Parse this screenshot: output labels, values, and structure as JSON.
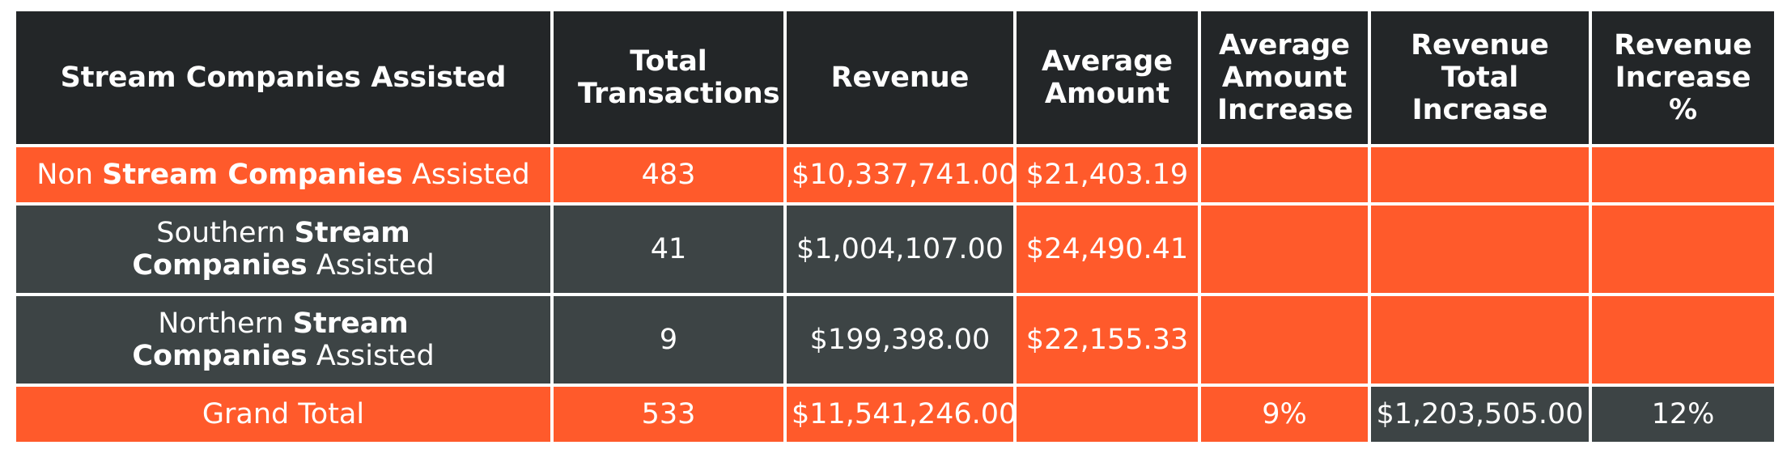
{
  "table": {
    "headers": [
      "Stream Companies Assisted",
      "Total Transactions",
      "Revenue",
      "Average Amount",
      "Average Amount Increase",
      "Revenue Total Increase",
      "Revenue Increase %"
    ],
    "rows": [
      {
        "label_prefix": "Non",
        "label_bold": "Stream Companies",
        "label_suffix": "Assisted",
        "total_transactions": "483",
        "revenue": "$10,337,741.00",
        "average_amount": "$21,403.19",
        "average_amount_increase": "",
        "revenue_total_increase": "",
        "revenue_increase_pct": ""
      },
      {
        "label_prefix": "Southern",
        "label_bold": "Stream Companies",
        "label_suffix": "Assisted",
        "total_transactions": "41",
        "revenue": "$1,004,107.00",
        "average_amount": "$24,490.41",
        "average_amount_increase": "",
        "revenue_total_increase": "",
        "revenue_increase_pct": ""
      },
      {
        "label_prefix": "Northern",
        "label_bold": "Stream Companies",
        "label_suffix": "Assisted",
        "total_transactions": "9",
        "revenue": "$199,398.00",
        "average_amount": "$22,155.33",
        "average_amount_increase": "",
        "revenue_total_increase": "",
        "revenue_increase_pct": ""
      },
      {
        "label_prefix": "Grand Total",
        "label_bold": "",
        "label_suffix": "",
        "total_transactions": "533",
        "revenue": "$11,541,246.00",
        "average_amount": "",
        "average_amount_increase": "9%",
        "revenue_total_increase": "$1,203,505.00",
        "revenue_increase_pct": "12%"
      }
    ]
  },
  "colors": {
    "header_bg": "#232628",
    "orange": "#ff5a2b",
    "gray": "#3d4445",
    "dark": "#232628",
    "text": "#ffffff"
  }
}
